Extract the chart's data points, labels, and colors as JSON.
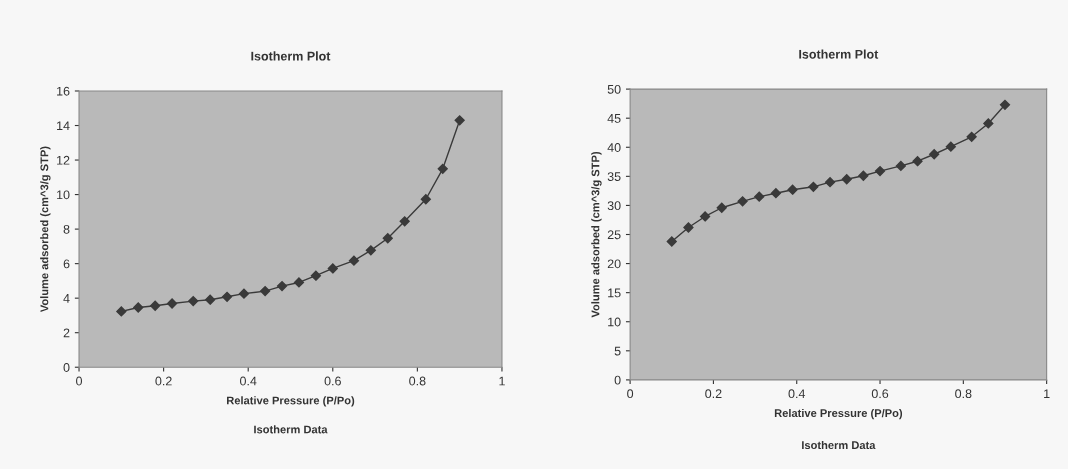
{
  "chart_data": [
    {
      "type": "line",
      "title": "Isotherm Plot",
      "xlabel": "Relative Pressure (P/Po)",
      "ylabel": "Volume adsorbed (cm^3/g STP)",
      "annotations": [
        "Isotherm Data"
      ],
      "marker": "diamond",
      "xlim": [
        0,
        1
      ],
      "xticks": [
        0,
        0.2,
        0.4,
        0.6,
        0.8,
        1
      ],
      "ylim": [
        0,
        16
      ],
      "yticks": [
        0,
        2,
        4,
        6,
        8,
        10,
        12,
        14,
        16
      ],
      "series": [
        {
          "color": "#3a3a3a",
          "x": [
            0.1,
            0.14,
            0.18,
            0.22,
            0.27,
            0.31,
            0.35,
            0.39,
            0.44,
            0.48,
            0.52,
            0.56,
            0.6,
            0.65,
            0.69,
            0.73,
            0.77,
            0.82,
            0.86,
            0.9
          ],
          "values": [
            3.23,
            3.46,
            3.56,
            3.69,
            3.83,
            3.91,
            4.08,
            4.26,
            4.41,
            4.7,
            4.91,
            5.3,
            5.72,
            6.17,
            6.77,
            7.47,
            8.45,
            9.73,
            11.49,
            14.3
          ]
        }
      ]
    },
    {
      "type": "line",
      "title": "Isotherm Plot",
      "xlabel": "Relative Pressure (P/Po)",
      "ylabel": "Volume adsorbed (cm^3/g STP)",
      "annotations": [
        "Isotherm Data"
      ],
      "marker": "diamond",
      "xlim": [
        0,
        1
      ],
      "xticks": [
        0,
        0.2,
        0.4,
        0.6,
        0.8,
        1
      ],
      "ylim": [
        0,
        50
      ],
      "yticks": [
        0,
        5,
        10,
        15,
        20,
        25,
        30,
        35,
        40,
        45,
        50
      ],
      "series": [
        {
          "color": "#3a3a3a",
          "x": [
            0.1,
            0.14,
            0.18,
            0.22,
            0.27,
            0.31,
            0.35,
            0.39,
            0.44,
            0.48,
            0.52,
            0.56,
            0.6,
            0.65,
            0.69,
            0.73,
            0.77,
            0.82,
            0.86,
            0.9
          ],
          "values": [
            23.8,
            26.2,
            28.1,
            29.6,
            30.7,
            31.5,
            32.1,
            32.7,
            33.2,
            34.0,
            34.5,
            35.1,
            35.9,
            36.8,
            37.6,
            38.8,
            40.1,
            41.8,
            44.1,
            47.3
          ]
        }
      ]
    }
  ]
}
